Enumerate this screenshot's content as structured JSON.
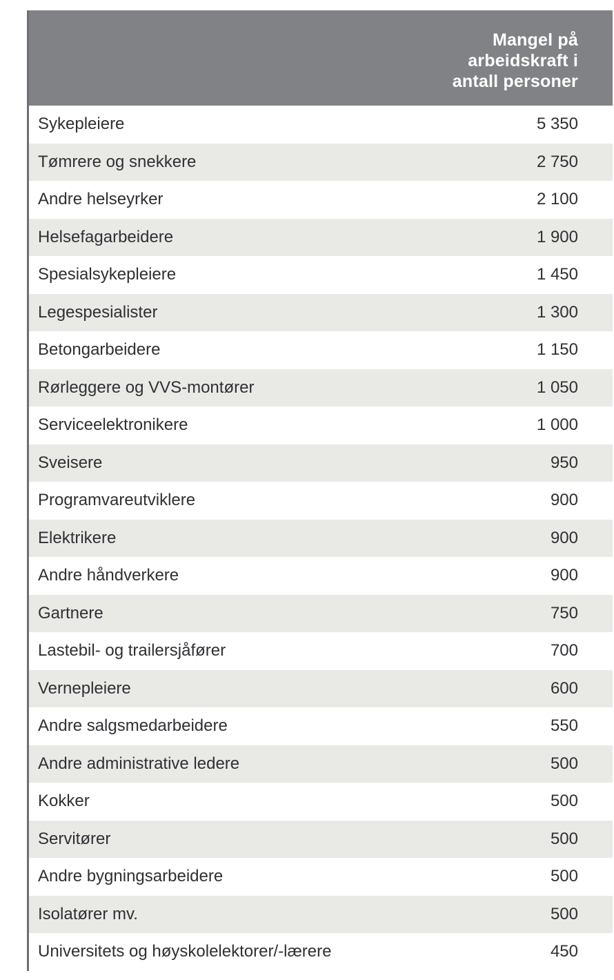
{
  "colors": {
    "header_bg": "#808285",
    "row_stripe_bg": "#e9eae6",
    "row_text": "#2e3033",
    "header_text": "#ffffff",
    "left_border": "#6e6f73"
  },
  "table": {
    "header": {
      "value_column_label": "Mangel på\narbeidskraft i\nantall personer"
    },
    "rows": [
      {
        "label": "Sykepleiere",
        "value": "5 350"
      },
      {
        "label": "Tømrere og snekkere",
        "value": "2 750"
      },
      {
        "label": "Andre helseyrker",
        "value": "2 100"
      },
      {
        "label": "Helsefagarbeidere",
        "value": "1 900"
      },
      {
        "label": "Spesialsykepleiere",
        "value": "1 450"
      },
      {
        "label": "Legespesialister",
        "value": "1 300"
      },
      {
        "label": "Betongarbeidere",
        "value": "1 150"
      },
      {
        "label": "Rørleggere og VVS-montører",
        "value": "1 050"
      },
      {
        "label": "Serviceelektronikere",
        "value": "1 000"
      },
      {
        "label": "Sveisere",
        "value": "950"
      },
      {
        "label": "Programvareutviklere",
        "value": "900"
      },
      {
        "label": "Elektrikere",
        "value": "900"
      },
      {
        "label": "Andre håndverkere",
        "value": "900"
      },
      {
        "label": "Gartnere",
        "value": "750"
      },
      {
        "label": "Lastebil- og trailersjåfører",
        "value": "700"
      },
      {
        "label": "Vernepleiere",
        "value": "600"
      },
      {
        "label": "Andre salgsmedarbeidere",
        "value": "550"
      },
      {
        "label": "Andre administrative ledere",
        "value": "500"
      },
      {
        "label": "Kokker",
        "value": "500"
      },
      {
        "label": "Servitører",
        "value": "500"
      },
      {
        "label": "Andre bygningsarbeidere",
        "value": "500"
      },
      {
        "label": "Isolatører mv.",
        "value": "500"
      },
      {
        "label": "Universitets og høyskolelektorer/-lærere",
        "value": "450"
      }
    ]
  },
  "chart_data": {
    "type": "table",
    "columns": [
      "",
      "Mangel på arbeidskraft i antall personer"
    ],
    "categories": [
      "Sykepleiere",
      "Tømrere og snekkere",
      "Andre helseyrker",
      "Helsefagarbeidere",
      "Spesialsykepleiere",
      "Legespesialister",
      "Betongarbeidere",
      "Rørleggere og VVS-montører",
      "Serviceelektronikere",
      "Sveisere",
      "Programvareutviklere",
      "Elektrikere",
      "Andre håndverkere",
      "Gartnere",
      "Lastebil- og trailersjåfører",
      "Vernepleiere",
      "Andre salgsmedarbeidere",
      "Andre administrative ledere",
      "Kokker",
      "Servitører",
      "Andre bygningsarbeidere",
      "Isolatører mv.",
      "Universitets og høyskolelektorer/-lærere"
    ],
    "values": [
      5350,
      2750,
      2100,
      1900,
      1450,
      1300,
      1150,
      1050,
      1000,
      950,
      900,
      900,
      900,
      750,
      700,
      600,
      550,
      500,
      500,
      500,
      500,
      500,
      450
    ]
  }
}
